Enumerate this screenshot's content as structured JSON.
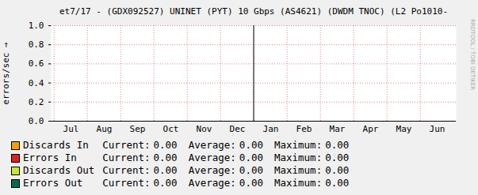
{
  "chart_data": {
    "type": "line",
    "title": "et7/17 - (GDX092527) UNINET (PYT) 10 Gbps (AS4621) (DWDM TNOC) (L2 Po1010-",
    "y_label": "errors/sec",
    "watermark": "RRDTOOL / TOBI OETIKER",
    "categories": [
      "Jul",
      "Aug",
      "Sep",
      "Oct",
      "Nov",
      "Dec",
      "Jan",
      "Feb",
      "Mar",
      "Apr",
      "May",
      "Jun"
    ],
    "ylim": [
      0,
      1
    ],
    "yticks": [
      {
        "value": 0,
        "label": "0.0"
      },
      {
        "value": 0.2,
        "label": "0.2"
      },
      {
        "value": 0.4,
        "label": "0.4"
      },
      {
        "value": 0.6,
        "label": "0.6"
      },
      {
        "value": 0.8,
        "label": "0.8"
      },
      {
        "value": 1,
        "label": "1.0"
      }
    ],
    "grid": true,
    "legend_columns": [
      "Current:",
      "Average:",
      "Maximum:"
    ],
    "series": [
      {
        "name": "Discards In",
        "color": "#f5a000",
        "values": [
          0,
          0,
          0,
          0,
          0,
          0,
          0,
          0,
          0,
          0,
          0,
          0
        ],
        "stats": [
          {
            "value": 0,
            "label": "0.00"
          },
          {
            "value": 0,
            "label": "0.00"
          },
          {
            "value": 0,
            "label": "0.00"
          }
        ]
      },
      {
        "name": "Errors In",
        "color": "#e02020",
        "values": [
          0,
          0,
          0,
          0,
          0,
          0,
          0,
          0,
          0,
          0,
          0,
          0
        ],
        "stats": [
          {
            "value": 0,
            "label": "0.00"
          },
          {
            "value": 0,
            "label": "0.00"
          },
          {
            "value": 0,
            "label": "0.00"
          }
        ]
      },
      {
        "name": "Discards Out",
        "color": "#c8e632",
        "values": [
          0,
          0,
          0,
          0,
          0,
          0,
          0,
          0,
          0,
          0,
          0,
          0
        ],
        "stats": [
          {
            "value": 0,
            "label": "0.00"
          },
          {
            "value": 0,
            "label": "0.00"
          },
          {
            "value": 0,
            "label": "0.00"
          }
        ]
      },
      {
        "name": "Errors Out",
        "color": "#006e4e",
        "values": [
          0,
          0,
          0,
          0,
          0,
          0,
          0,
          0,
          0,
          0,
          0,
          0
        ],
        "stats": [
          {
            "value": 0,
            "label": "0.00"
          },
          {
            "value": 0,
            "label": "0.00"
          },
          {
            "value": 0,
            "label": "0.00"
          }
        ]
      }
    ]
  }
}
